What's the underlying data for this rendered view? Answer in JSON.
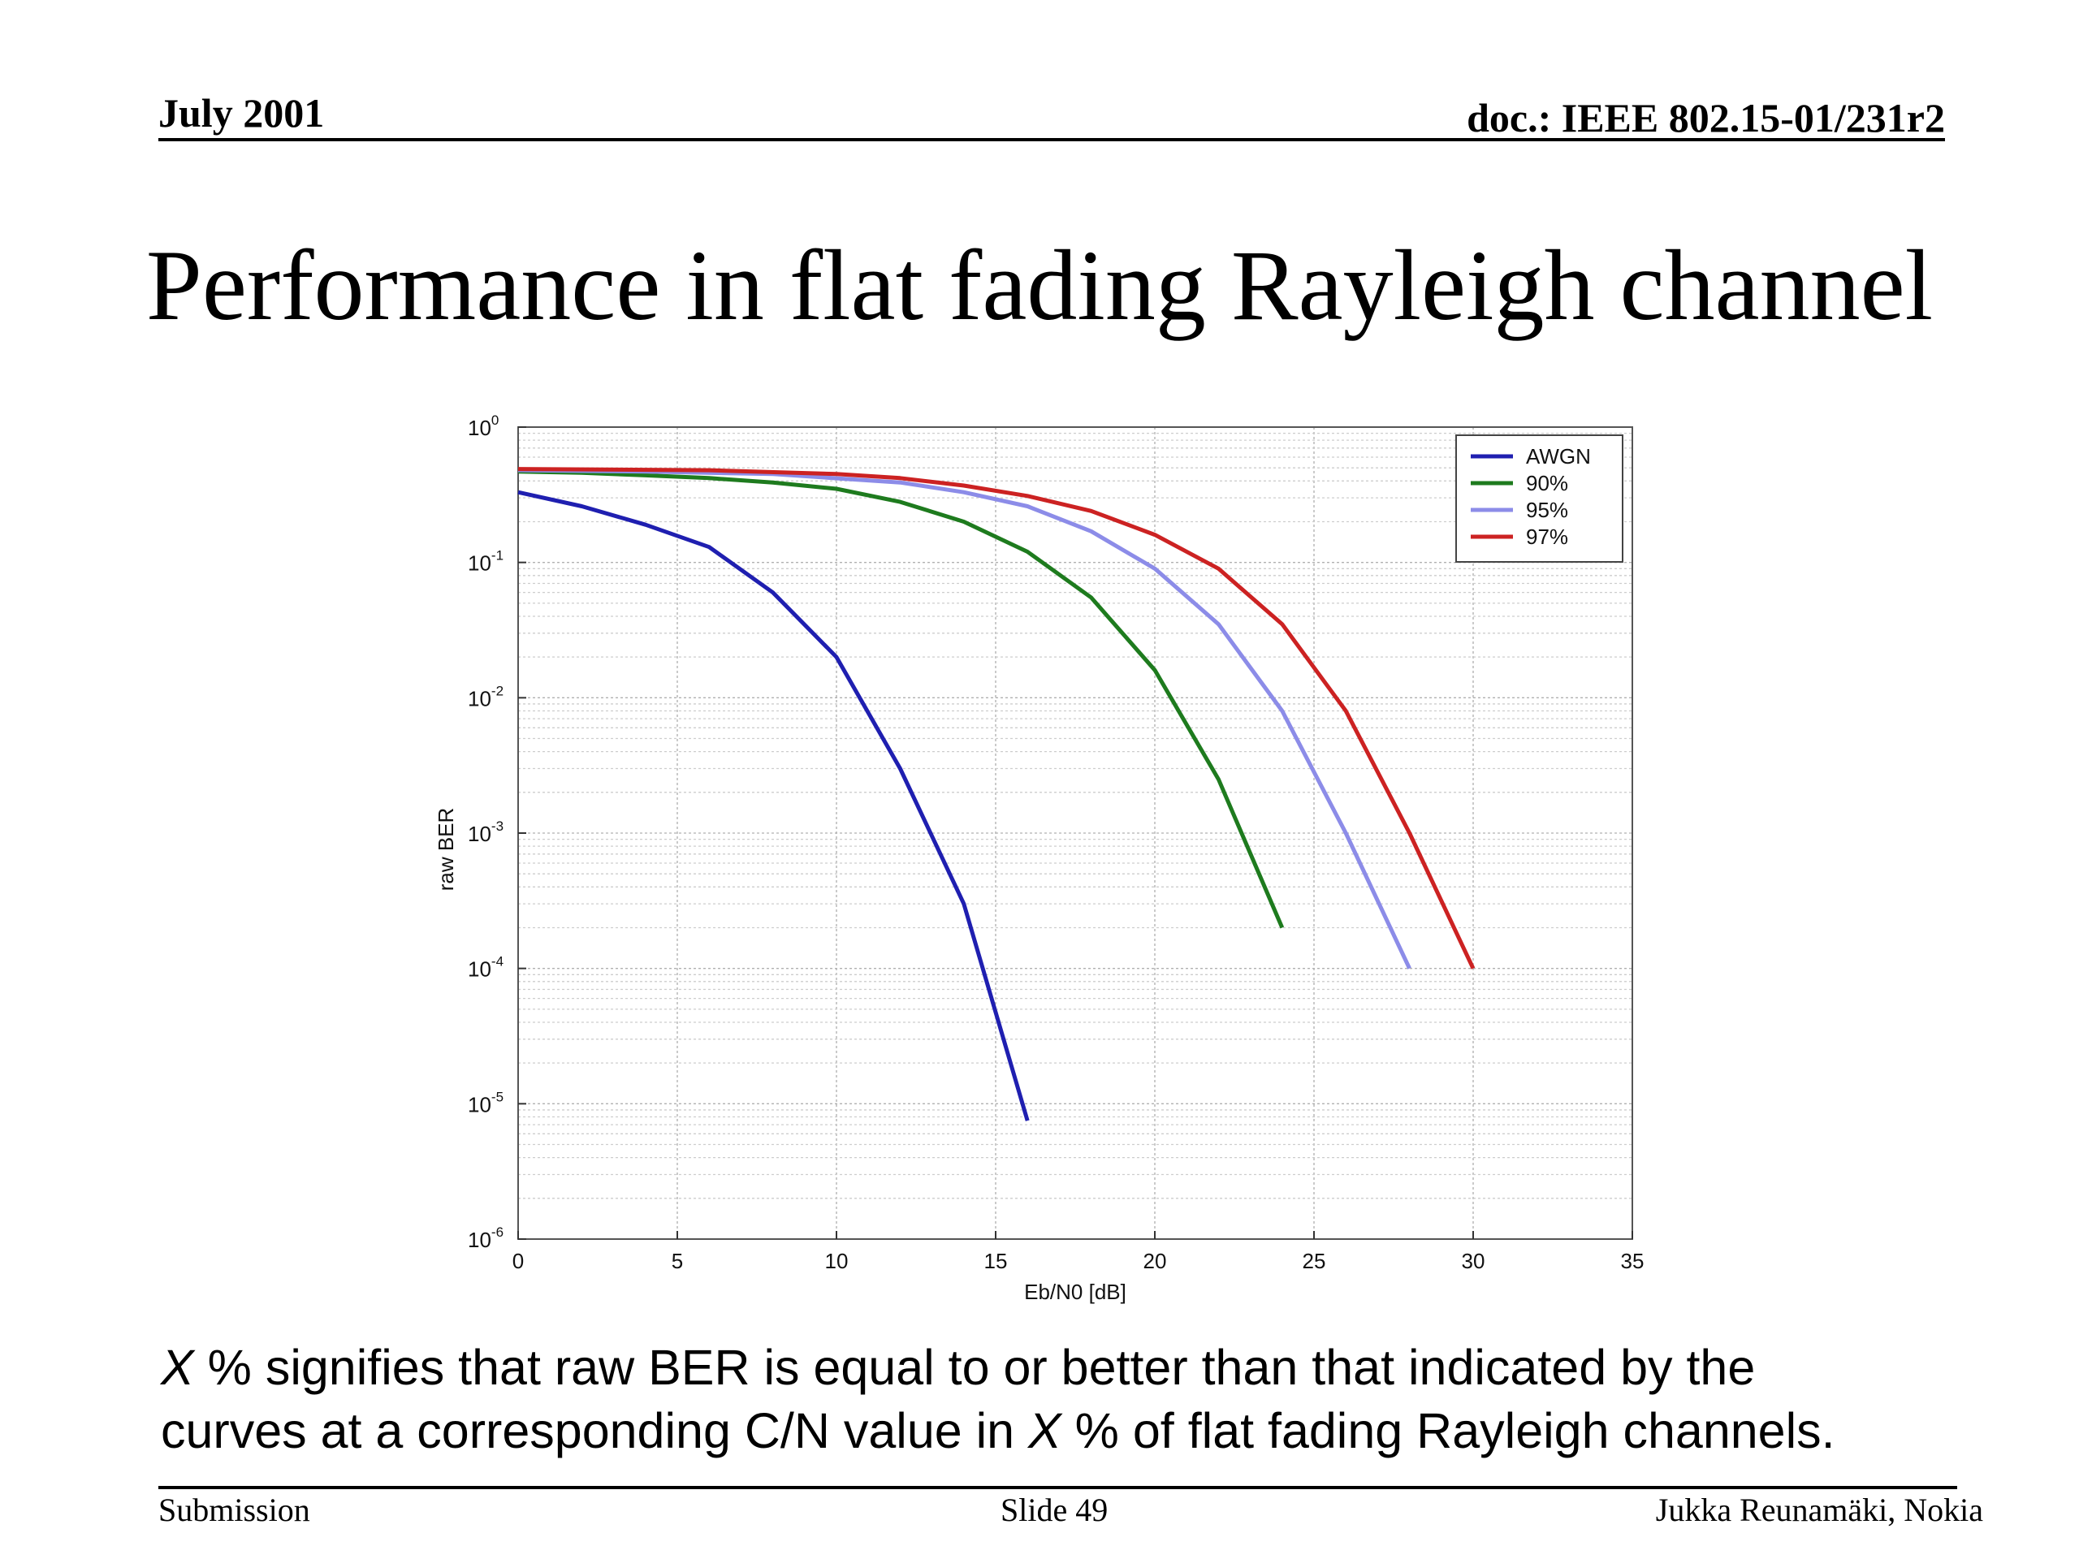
{
  "header": {
    "date": "July 2001",
    "doc_id": "doc.: IEEE 802.15-01/231r2"
  },
  "slide": {
    "title": "Performance in flat fading Rayleigh channel",
    "caption": {
      "line1": {
        "var": "X",
        "text": " % signifies that raw BER is equal to or better than that indicated by the"
      },
      "line2": {
        "prefix": "curves at a corresponding C/N value in ",
        "var": "X",
        "suffix": " % of flat fading Rayleigh channels."
      }
    }
  },
  "footer": {
    "left": "Submission",
    "center": "Slide 49",
    "right": "Jukka Reunamäki, Nokia"
  },
  "chart_data": {
    "type": "line",
    "title": "",
    "xlabel": "Eb/N0 [dB]",
    "ylabel": "raw BER",
    "xlim": [
      0,
      35
    ],
    "ylim": [
      1e-06,
      1
    ],
    "y_scale": "log",
    "grid": true,
    "legend_position": "top-right",
    "x_ticks": [
      0,
      5,
      10,
      15,
      20,
      25,
      30,
      35
    ],
    "y_ticks": [
      {
        "base": "10",
        "exp": "0"
      },
      {
        "base": "10",
        "exp": "-1"
      },
      {
        "base": "10",
        "exp": "-2"
      },
      {
        "base": "10",
        "exp": "-3"
      },
      {
        "base": "10",
        "exp": "-4"
      },
      {
        "base": "10",
        "exp": "-5"
      },
      {
        "base": "10",
        "exp": "-6"
      }
    ],
    "series": [
      {
        "name": "AWGN",
        "color": "#1f1fb0",
        "points": [
          [
            0,
            0.33
          ],
          [
            2,
            0.26
          ],
          [
            4,
            0.19
          ],
          [
            6,
            0.13
          ],
          [
            8,
            0.06
          ],
          [
            10,
            0.02
          ],
          [
            12,
            0.003
          ],
          [
            14,
            0.0003
          ],
          [
            16,
            7.5e-06
          ]
        ]
      },
      {
        "name": "90%",
        "color": "#1e7b1e",
        "points": [
          [
            0,
            0.47
          ],
          [
            2,
            0.46
          ],
          [
            4,
            0.44
          ],
          [
            6,
            0.42
          ],
          [
            8,
            0.39
          ],
          [
            10,
            0.35
          ],
          [
            12,
            0.28
          ],
          [
            14,
            0.2
          ],
          [
            16,
            0.12
          ],
          [
            18,
            0.055
          ],
          [
            20,
            0.016
          ],
          [
            22,
            0.0025
          ],
          [
            24,
            0.0002
          ]
        ]
      },
      {
        "name": "95%",
        "color": "#8c8ce8",
        "points": [
          [
            0,
            0.48
          ],
          [
            4,
            0.47
          ],
          [
            8,
            0.45
          ],
          [
            12,
            0.39
          ],
          [
            14,
            0.33
          ],
          [
            16,
            0.26
          ],
          [
            18,
            0.17
          ],
          [
            20,
            0.09
          ],
          [
            22,
            0.035
          ],
          [
            24,
            0.008
          ],
          [
            26,
            0.001
          ],
          [
            28,
            0.0001
          ]
        ]
      },
      {
        "name": "97%",
        "color": "#cc2222",
        "points": [
          [
            0,
            0.49
          ],
          [
            6,
            0.48
          ],
          [
            10,
            0.45
          ],
          [
            12,
            0.42
          ],
          [
            14,
            0.37
          ],
          [
            16,
            0.31
          ],
          [
            18,
            0.24
          ],
          [
            20,
            0.16
          ],
          [
            22,
            0.09
          ],
          [
            24,
            0.035
          ],
          [
            26,
            0.008
          ],
          [
            28,
            0.001
          ],
          [
            30,
            0.0001
          ]
        ]
      }
    ]
  }
}
